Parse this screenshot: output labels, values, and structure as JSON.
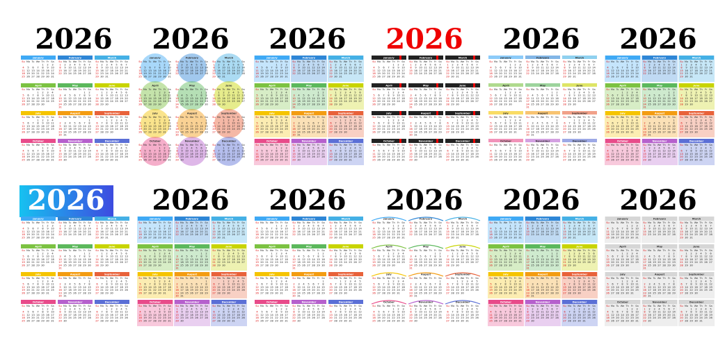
{
  "calendars": [
    {
      "title": "2026"
    },
    {
      "title": "2026"
    },
    {
      "title": "2026"
    },
    {
      "title": "2026"
    },
    {
      "title": "2026"
    },
    {
      "title": "2026"
    },
    {
      "title": "2026"
    },
    {
      "title": "2026"
    },
    {
      "title": "2026"
    },
    {
      "title": "2026"
    },
    {
      "title": "2026"
    },
    {
      "title": "2026"
    }
  ],
  "weekdays": [
    "Su",
    "Mo",
    "Tu",
    "We",
    "Th",
    "Fr",
    "Sa"
  ],
  "months": [
    {
      "name": "January",
      "days": [
        null,
        null,
        null,
        null,
        1,
        2,
        3,
        4,
        5,
        6,
        7,
        8,
        9,
        10,
        11,
        12,
        13,
        14,
        15,
        16,
        17,
        18,
        19,
        20,
        21,
        22,
        23,
        24,
        25,
        26,
        27,
        28,
        29,
        30,
        31
      ]
    },
    {
      "name": "February",
      "days": [
        1,
        2,
        3,
        4,
        5,
        6,
        7,
        8,
        9,
        10,
        11,
        12,
        13,
        14,
        15,
        16,
        17,
        18,
        19,
        20,
        21,
        22,
        23,
        24,
        25,
        26,
        27,
        28
      ]
    },
    {
      "name": "March",
      "days": [
        1,
        2,
        3,
        4,
        5,
        6,
        7,
        8,
        9,
        10,
        11,
        12,
        13,
        14,
        15,
        16,
        17,
        18,
        19,
        20,
        21,
        22,
        23,
        24,
        25,
        26,
        27,
        28,
        29,
        30,
        31
      ]
    },
    {
      "name": "April",
      "days": [
        null,
        null,
        null,
        1,
        2,
        3,
        4,
        5,
        6,
        7,
        8,
        9,
        10,
        11,
        12,
        13,
        14,
        15,
        16,
        17,
        18,
        19,
        20,
        21,
        22,
        23,
        24,
        25,
        26,
        27,
        28,
        29,
        30
      ]
    },
    {
      "name": "May",
      "days": [
        null,
        null,
        null,
        null,
        null,
        1,
        2,
        3,
        4,
        5,
        6,
        7,
        8,
        9,
        10,
        11,
        12,
        13,
        14,
        15,
        16,
        17,
        18,
        19,
        20,
        21,
        22,
        23,
        24,
        25,
        26,
        27,
        28,
        29,
        30,
        31
      ]
    },
    {
      "name": "June",
      "days": [
        null,
        1,
        2,
        3,
        4,
        5,
        6,
        7,
        8,
        9,
        10,
        11,
        12,
        13,
        14,
        15,
        16,
        17,
        18,
        19,
        20,
        21,
        22,
        23,
        24,
        25,
        26,
        27,
        28,
        29,
        30
      ]
    },
    {
      "name": "July",
      "days": [
        null,
        null,
        null,
        1,
        2,
        3,
        4,
        5,
        6,
        7,
        8,
        9,
        10,
        11,
        12,
        13,
        14,
        15,
        16,
        17,
        18,
        19,
        20,
        21,
        22,
        23,
        24,
        25,
        26,
        27,
        28,
        29,
        30,
        31
      ]
    },
    {
      "name": "August",
      "days": [
        null,
        null,
        null,
        null,
        null,
        null,
        1,
        2,
        3,
        4,
        5,
        6,
        7,
        8,
        9,
        10,
        11,
        12,
        13,
        14,
        15,
        16,
        17,
        18,
        19,
        20,
        21,
        22,
        23,
        24,
        25,
        26,
        27,
        28,
        29,
        30,
        31
      ]
    },
    {
      "name": "September",
      "days": [
        null,
        null,
        1,
        2,
        3,
        4,
        5,
        6,
        7,
        8,
        9,
        10,
        11,
        12,
        13,
        14,
        15,
        16,
        17,
        18,
        19,
        20,
        21,
        22,
        23,
        24,
        25,
        26,
        27,
        28,
        29,
        30
      ]
    },
    {
      "name": "October",
      "days": [
        null,
        null,
        null,
        null,
        1,
        2,
        3,
        4,
        5,
        6,
        7,
        8,
        9,
        10,
        11,
        12,
        13,
        14,
        15,
        16,
        17,
        18,
        19,
        20,
        21,
        22,
        23,
        24,
        25,
        26,
        27,
        28,
        29,
        30,
        31
      ]
    },
    {
      "name": "November",
      "days": [
        1,
        2,
        3,
        4,
        5,
        6,
        7,
        8,
        9,
        10,
        11,
        12,
        13,
        14,
        15,
        16,
        17,
        18,
        19,
        20,
        21,
        22,
        23,
        24,
        25,
        26,
        27,
        28,
        29,
        30
      ]
    },
    {
      "name": "December",
      "days": [
        null,
        null,
        1,
        2,
        3,
        4,
        5,
        6,
        7,
        8,
        9,
        10,
        11,
        12,
        13,
        14,
        15,
        16,
        17,
        18,
        19,
        20,
        21,
        22,
        23,
        24,
        25,
        26,
        27,
        28,
        29,
        30,
        31
      ]
    }
  ]
}
